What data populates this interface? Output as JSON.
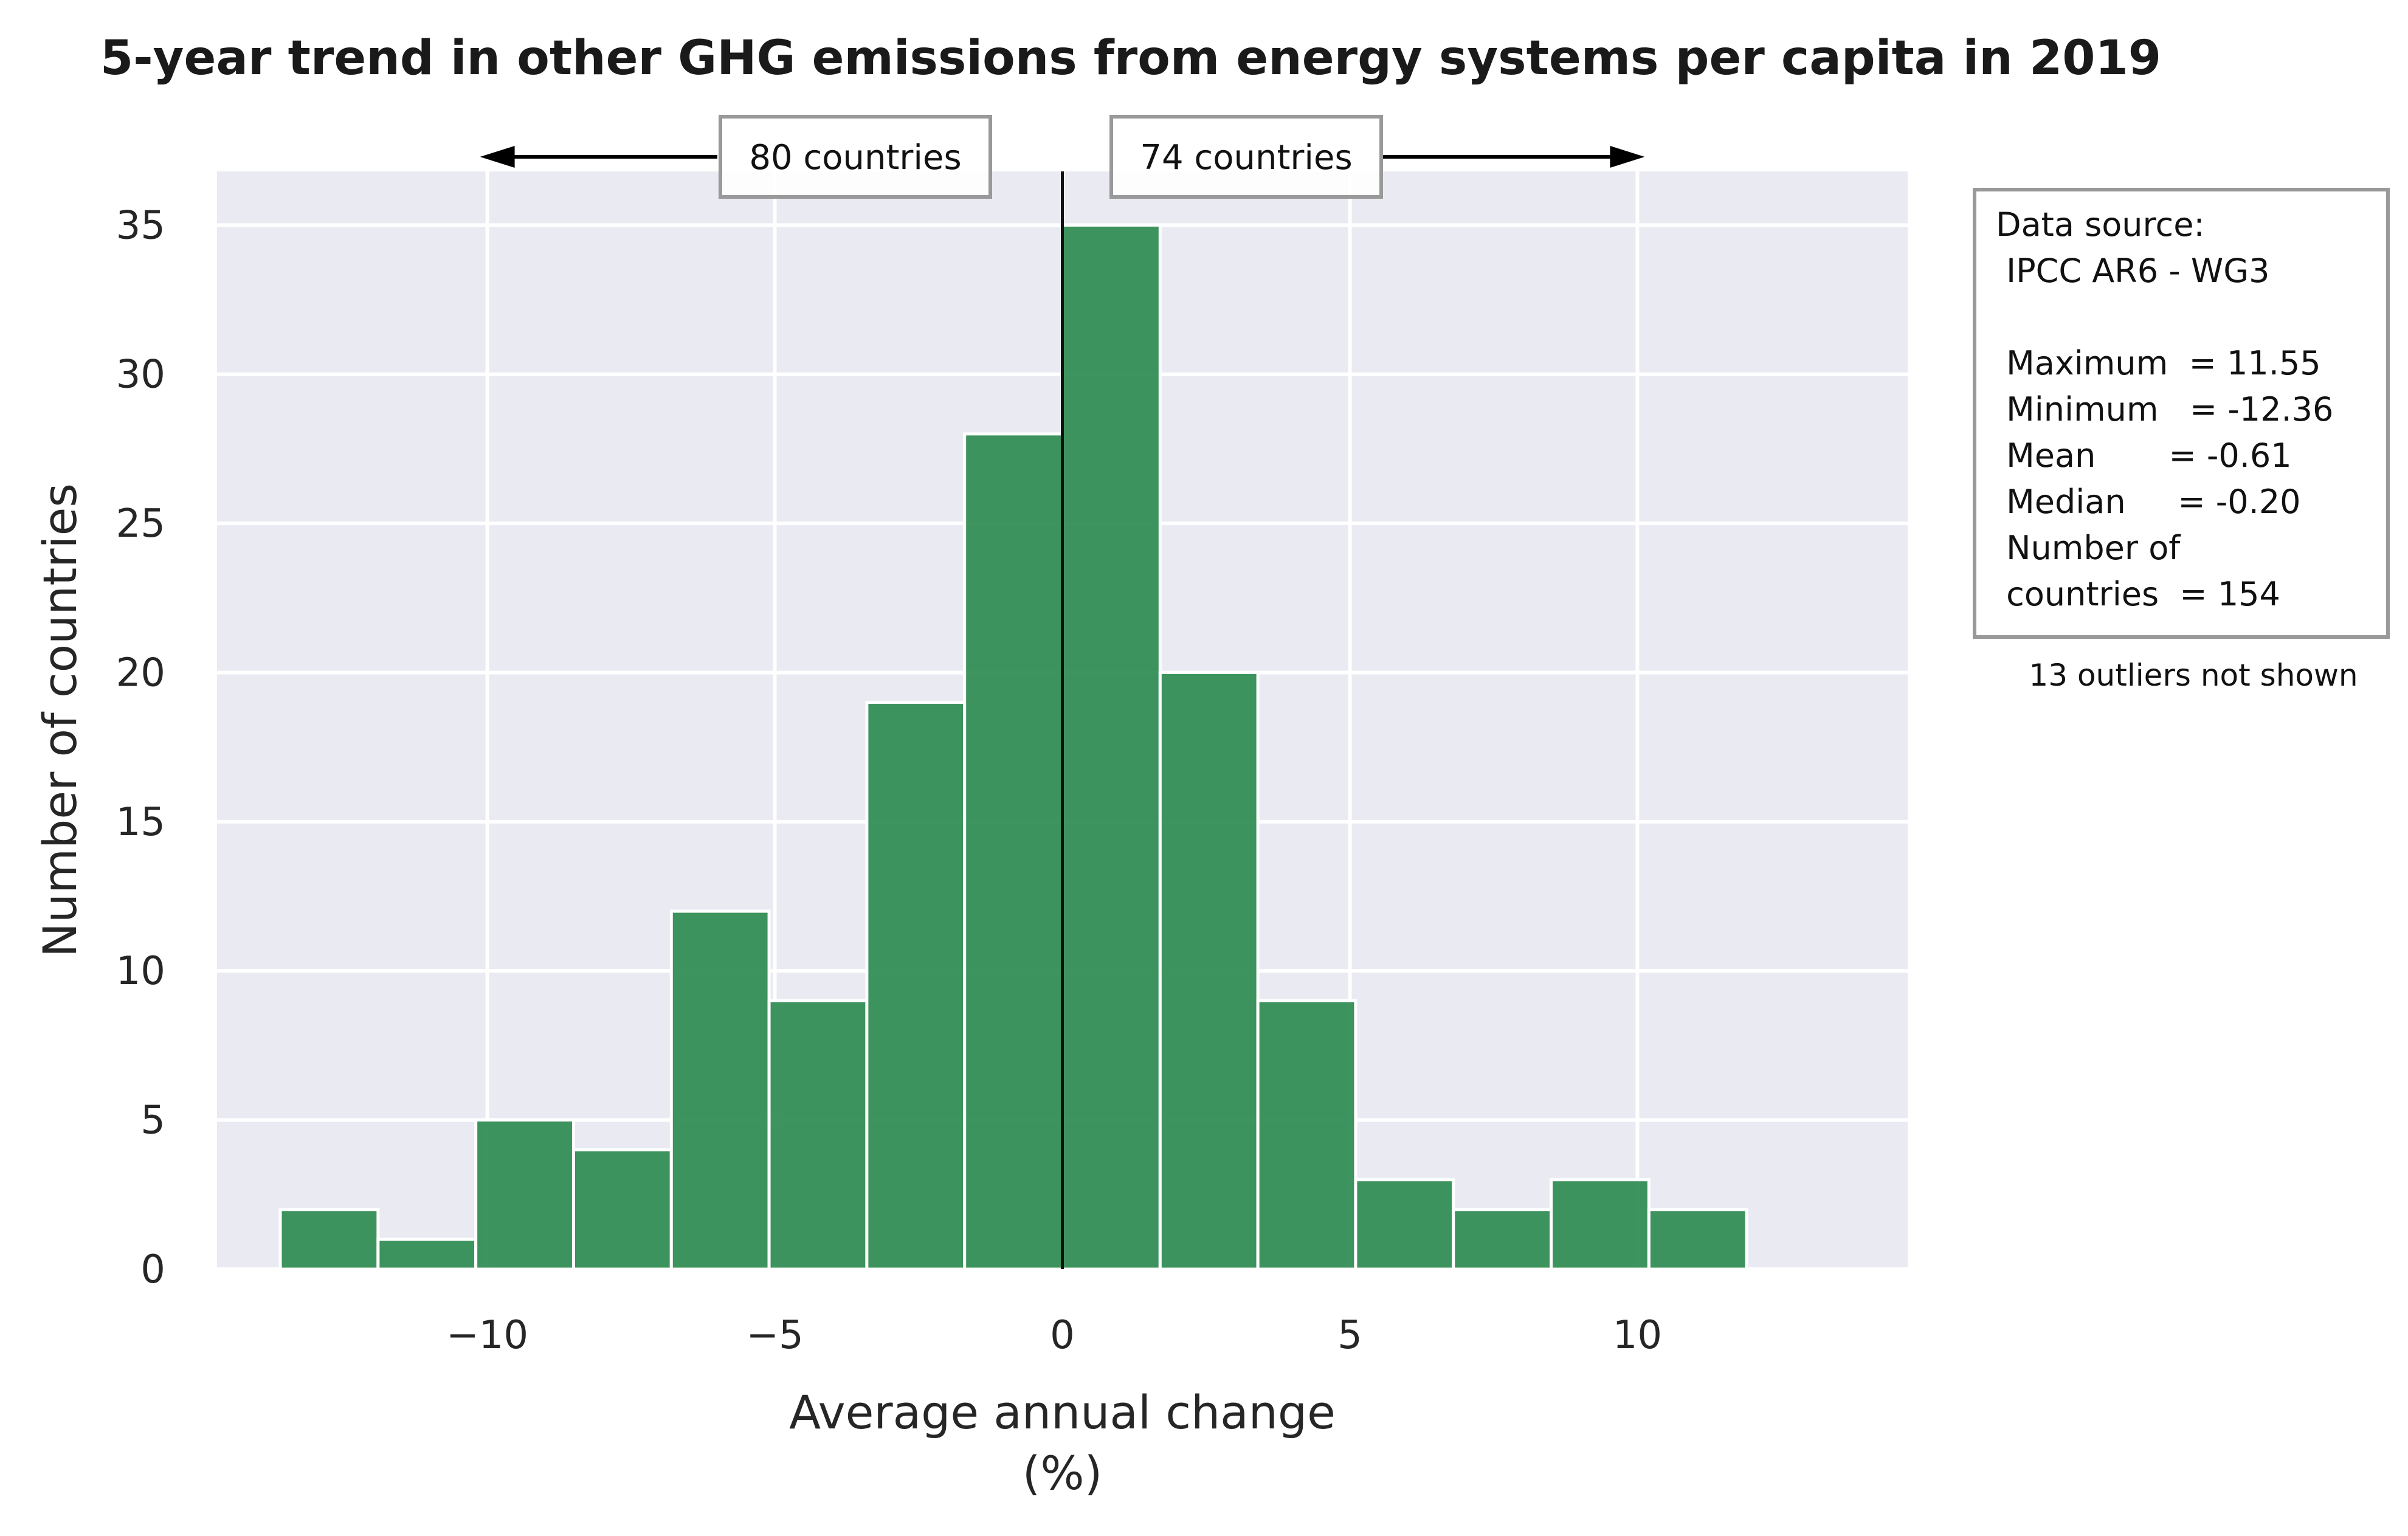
{
  "chart_data": {
    "type": "bar",
    "title": "5-year trend in other GHG emissions from energy systems per capita in 2019",
    "xlabel_line1": "Average annual change",
    "xlabel_line2": "(%)",
    "ylabel": "Number of countries",
    "xlim": [
      -14.7,
      14.7
    ],
    "ylim": [
      0,
      36.8
    ],
    "x_ticks": [
      -10,
      -5,
      0,
      5,
      10
    ],
    "x_tick_labels": [
      "−10",
      "−5",
      "0",
      "5",
      "10"
    ],
    "y_ticks": [
      0,
      5,
      10,
      15,
      20,
      25,
      30,
      35
    ],
    "y_tick_labels": [
      "0",
      "5",
      "10",
      "15",
      "20",
      "25",
      "30",
      "35"
    ],
    "grid": true,
    "bar_color": "#2e8b50",
    "plot_background": "#eaeaf2",
    "vertical_reference_line_x": 0,
    "bins": [
      {
        "start": -13.6,
        "end": -11.9,
        "count": 2
      },
      {
        "start": -11.9,
        "end": -10.2,
        "count": 1
      },
      {
        "start": -10.2,
        "end": -8.5,
        "count": 5
      },
      {
        "start": -8.5,
        "end": -6.8,
        "count": 4
      },
      {
        "start": -6.8,
        "end": -5.1,
        "count": 12
      },
      {
        "start": -5.1,
        "end": -3.4,
        "count": 9
      },
      {
        "start": -3.4,
        "end": -1.7,
        "count": 19
      },
      {
        "start": -1.7,
        "end": 0.0,
        "count": 28
      },
      {
        "start": 0.0,
        "end": 1.7,
        "count": 35
      },
      {
        "start": 1.7,
        "end": 3.4,
        "count": 20
      },
      {
        "start": 3.4,
        "end": 5.1,
        "count": 9
      },
      {
        "start": 5.1,
        "end": 6.8,
        "count": 3
      },
      {
        "start": 6.8,
        "end": 8.5,
        "count": 2
      },
      {
        "start": 8.5,
        "end": 10.2,
        "count": 3
      },
      {
        "start": 10.2,
        "end": 11.9,
        "count": 2
      }
    ],
    "annotations": {
      "left_count": "80 countries",
      "right_count": "74 countries",
      "arrow_left_to_x": -10,
      "arrow_right_to_x": 10
    }
  },
  "info_box": {
    "lines": [
      "Data source:",
      " IPCC AR6 - WG3",
      "",
      " Maximum  = 11.55",
      " Minimum   = -12.36",
      " Mean       = -0.61",
      " Median     = -0.20",
      " Number of",
      " countries  = 154"
    ],
    "note": "13 outliers not shown"
  }
}
